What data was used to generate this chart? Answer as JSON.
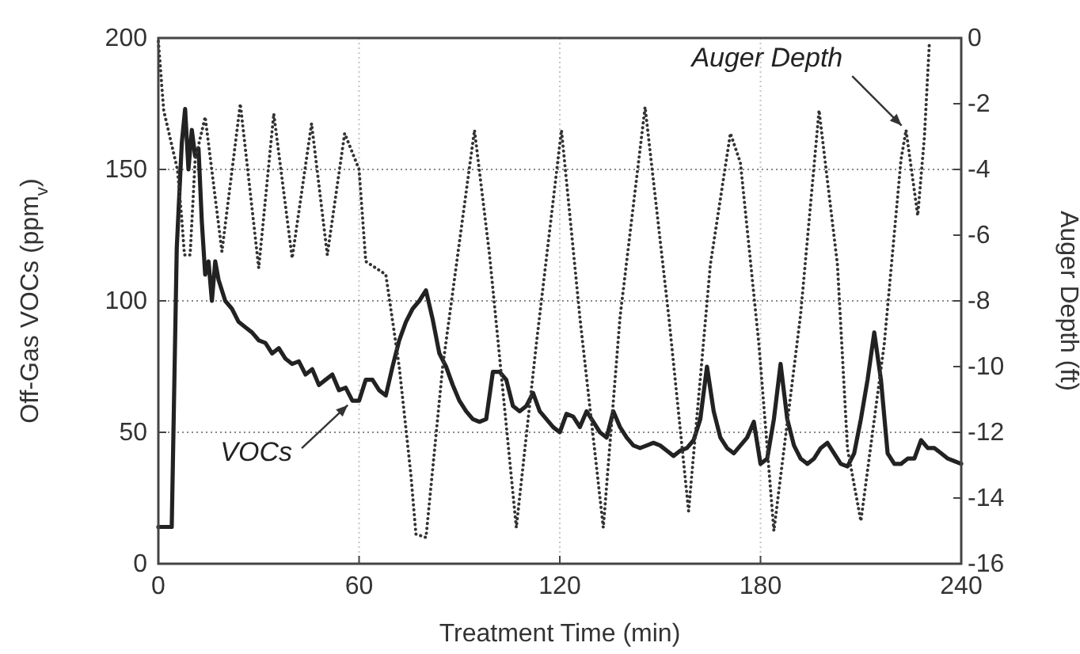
{
  "chart_data": {
    "type": "line",
    "xlabel": "Treatment Time  (min)",
    "ylabel": "Off-Gas VOCs (ppm$_{v}$)",
    "y2label": "Auger Depth  (ft)",
    "xlim": [
      0,
      240
    ],
    "xticks": [
      0,
      60,
      120,
      180,
      240
    ],
    "ylim": [
      0,
      200
    ],
    "yticks": [
      0,
      50,
      100,
      150,
      200
    ],
    "y2lim": [
      -16,
      0
    ],
    "y2ticks": [
      0,
      -2,
      -4,
      -6,
      -8,
      -10,
      -12,
      -14,
      -16
    ],
    "grid": true,
    "series": [
      {
        "name": "VOCs",
        "color": "#222222",
        "line_style": "solid",
        "x": [
          0,
          4,
          5.5,
          7,
          8,
          9,
          10,
          11,
          12,
          13,
          14,
          15,
          16,
          17,
          18,
          20,
          22,
          24,
          26,
          28,
          30,
          32,
          34,
          36,
          38,
          40,
          42,
          44,
          46,
          48,
          50,
          52,
          54,
          56,
          58,
          60,
          62,
          64,
          66,
          68,
          70,
          72,
          74,
          76,
          78,
          80,
          82,
          84,
          86,
          88,
          90,
          92,
          94,
          96,
          98,
          100,
          102,
          104,
          106,
          108,
          110,
          112,
          114,
          116,
          118,
          120,
          122,
          124,
          126,
          128,
          130,
          132,
          134,
          136,
          138,
          140,
          142,
          144,
          146,
          148,
          150,
          152,
          154,
          156,
          158,
          160,
          162,
          164,
          166,
          168,
          170,
          172,
          174,
          176,
          178,
          180,
          182,
          184,
          186,
          188,
          190,
          192,
          194,
          196,
          198,
          200,
          202,
          204,
          206,
          208,
          210,
          212,
          214,
          216,
          218,
          220,
          222,
          224,
          226,
          228,
          230,
          232,
          234,
          236,
          238,
          240
        ],
        "values": [
          14,
          14,
          120,
          160,
          173,
          150,
          165,
          155,
          158,
          130,
          110,
          115,
          100,
          115,
          108,
          100,
          97,
          92,
          90,
          88,
          85,
          84,
          80,
          82,
          78,
          76,
          77,
          72,
          74,
          68,
          70,
          72,
          66,
          67,
          62,
          62,
          70,
          70,
          66,
          64,
          75,
          85,
          92,
          97,
          100,
          104,
          93,
          80,
          75,
          68,
          62,
          58,
          55,
          54,
          55,
          73,
          73,
          70,
          60,
          58,
          60,
          65,
          58,
          55,
          52,
          50,
          57,
          56,
          52,
          58,
          54,
          50,
          48,
          58,
          52,
          48,
          45,
          44,
          45,
          46,
          45,
          43,
          41,
          43,
          44,
          47,
          55,
          75,
          58,
          48,
          44,
          42,
          45,
          48,
          54,
          38,
          40,
          55,
          76,
          55,
          45,
          40,
          38,
          40,
          44,
          46,
          42,
          38,
          37,
          42,
          55,
          70,
          88,
          70,
          42,
          38,
          38,
          40,
          40,
          47,
          44,
          44,
          42,
          40,
          39,
          38
        ]
      },
      {
        "name": "Auger Depth",
        "color": "#333333",
        "line_style": "dotted",
        "axis": "y2",
        "x": [
          0,
          1.6,
          5.7,
          7,
          7.8,
          9.5,
          11,
          14,
          19,
          24.5,
          30,
          34.5,
          40,
          45.8,
          50.5,
          55.7,
          60,
          62,
          68,
          72,
          75.5,
          77,
          80,
          85,
          94.5,
          99,
          107,
          113,
          120.5,
          126,
          133,
          138,
          145.5,
          152.6,
          158.5,
          165,
          171,
          174,
          179.5,
          184,
          192,
          197.5,
          203,
          206,
          210,
          217,
          222,
          223.5,
          227,
          229,
          230.5
        ],
        "values": [
          -0.1,
          -2.2,
          -4,
          -5.5,
          -6.6,
          -6.6,
          -3.7,
          -2.4,
          -6.5,
          -2,
          -7,
          -2.3,
          -6.7,
          -2.6,
          -6.6,
          -2.9,
          -4,
          -6.8,
          -7.2,
          -10,
          -13.3,
          -15.1,
          -15.2,
          -10,
          -2.8,
          -6.6,
          -14.9,
          -9.3,
          -2.8,
          -8.5,
          -14.9,
          -8.5,
          -2.1,
          -8.5,
          -14.4,
          -6.9,
          -2.9,
          -3.8,
          -9.3,
          -15,
          -8.4,
          -2.2,
          -6.9,
          -12.5,
          -14.7,
          -9.3,
          -3.7,
          -2.8,
          -5.4,
          -3,
          -0.1
        ]
      }
    ]
  }
}
